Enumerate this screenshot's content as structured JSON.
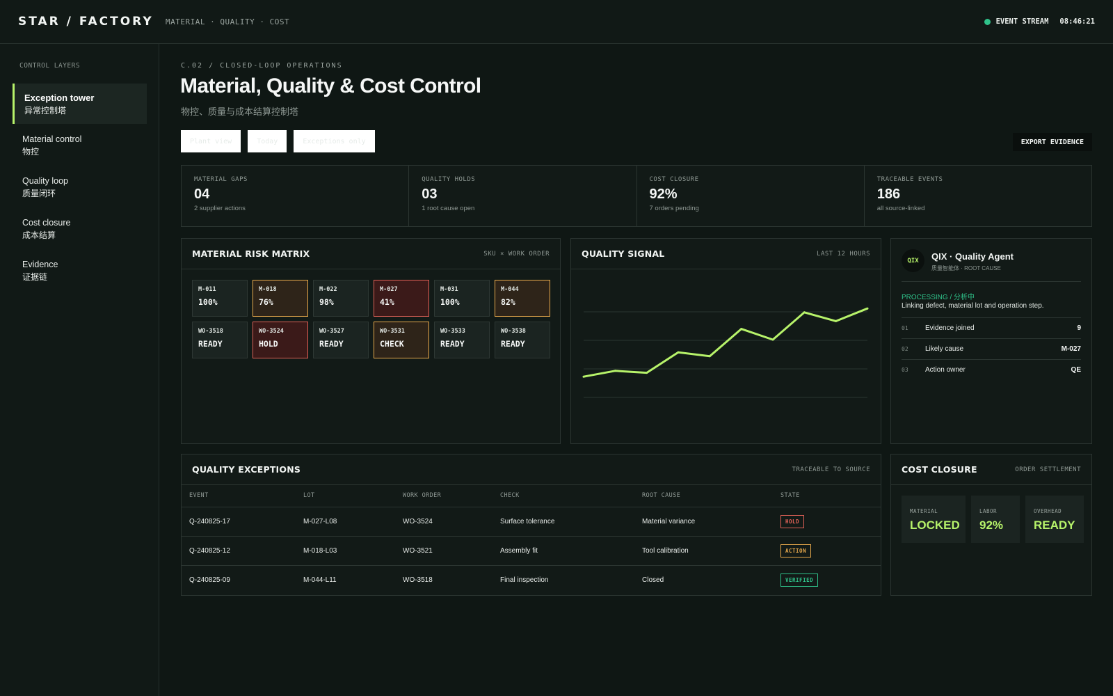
{
  "header": {
    "brand": "STAR / FACTORY",
    "nav": "MATERIAL · QUALITY · COST",
    "stream_label": "EVENT STREAM",
    "clock": "08:46:21",
    "stream_color": "#2fc28a"
  },
  "sidebar": {
    "title": "CONTROL LAYERS",
    "items": [
      {
        "en": "Exception tower",
        "zh": "异常控制塔",
        "active": true
      },
      {
        "en": "Material control",
        "zh": "物控"
      },
      {
        "en": "Quality loop",
        "zh": "质量闭环"
      },
      {
        "en": "Cost closure",
        "zh": "成本结算"
      },
      {
        "en": "Evidence",
        "zh": "证据链"
      }
    ]
  },
  "main": {
    "crumb": "C.02 / CLOSED-LOOP OPERATIONS",
    "title": "Material, Quality & Cost Control",
    "subtitle": "物控、质量与成本结算控制塔",
    "filters": [
      "Plant view",
      "Today",
      "Exceptions only"
    ],
    "export_label": "EXPORT EVIDENCE"
  },
  "kpis": [
    {
      "label": "MATERIAL GAPS",
      "value": "04",
      "sub": "2 supplier actions"
    },
    {
      "label": "QUALITY HOLDS",
      "value": "03",
      "sub": "1 root cause open"
    },
    {
      "label": "COST CLOSURE",
      "value": "92%",
      "sub": "7 orders pending"
    },
    {
      "label": "TRACEABLE EVENTS",
      "value": "186",
      "sub": "all source-linked"
    }
  ],
  "matrix": {
    "title": "MATERIAL RISK MATRIX",
    "tag": "SKU × WORK ORDER",
    "cells": [
      {
        "id": "M-011",
        "val": "100%",
        "state": "ok"
      },
      {
        "id": "M-018",
        "val": "76%",
        "state": "warn"
      },
      {
        "id": "M-022",
        "val": "98%",
        "state": "ok"
      },
      {
        "id": "M-027",
        "val": "41%",
        "state": "hold"
      },
      {
        "id": "M-031",
        "val": "100%",
        "state": "ok"
      },
      {
        "id": "M-044",
        "val": "82%",
        "state": "warn"
      },
      {
        "id": "WO-3518",
        "val": "READY",
        "state": "ok"
      },
      {
        "id": "WO-3524",
        "val": "HOLD",
        "state": "hold"
      },
      {
        "id": "WO-3527",
        "val": "READY",
        "state": "ok"
      },
      {
        "id": "WO-3531",
        "val": "CHECK",
        "state": "warn"
      },
      {
        "id": "WO-3533",
        "val": "READY",
        "state": "ok"
      },
      {
        "id": "WO-3538",
        "val": "READY",
        "state": "ok"
      }
    ]
  },
  "signal": {
    "title": "QUALITY SIGNAL",
    "tag": "LAST 12 HOURS",
    "line_color": "#b7f36a"
  },
  "chart_data": {
    "type": "line",
    "title": "QUALITY SIGNAL",
    "xlabel": "",
    "ylabel": "",
    "grid": true,
    "ylim": [
      0,
      100
    ],
    "x": [
      1,
      2,
      3,
      4,
      5,
      6,
      7,
      8,
      9,
      10
    ],
    "series": [
      {
        "values": [
          22,
          28,
          26,
          47,
          43,
          71,
          60,
          88,
          79,
          92
        ]
      }
    ]
  },
  "agent": {
    "avatar": "QIX",
    "name": "QIX · Quality Agent",
    "sub": "质量智能体 · ROOT CAUSE",
    "status": "PROCESSING / 分析中",
    "desc": "Linking defect, material lot and operation step.",
    "rows": [
      {
        "num": "01",
        "label": "Evidence joined",
        "value": "9"
      },
      {
        "num": "02",
        "label": "Likely cause",
        "value": "M-027"
      },
      {
        "num": "03",
        "label": "Action owner",
        "value": "QE"
      }
    ]
  },
  "exceptions": {
    "title": "QUALITY EXCEPTIONS",
    "tag": "TRACEABLE TO SOURCE",
    "columns": [
      "EVENT",
      "LOT",
      "WORK ORDER",
      "CHECK",
      "ROOT CAUSE",
      "STATE"
    ],
    "rows": [
      {
        "event": "Q-240825-17",
        "lot": "M-027-L08",
        "wo": "WO-3524",
        "check": "Surface tolerance",
        "cause": "Material variance",
        "state": "HOLD",
        "kind": "hold"
      },
      {
        "event": "Q-240825-12",
        "lot": "M-018-L03",
        "wo": "WO-3521",
        "check": "Assembly fit",
        "cause": "Tool calibration",
        "state": "ACTION",
        "kind": "action"
      },
      {
        "event": "Q-240825-09",
        "lot": "M-044-L11",
        "wo": "WO-3518",
        "check": "Final inspection",
        "cause": "Closed",
        "state": "VERIFIED",
        "kind": "verified"
      }
    ]
  },
  "cost": {
    "title": "COST CLOSURE",
    "tag": "ORDER SETTLEMENT",
    "cards": [
      {
        "label": "MATERIAL",
        "value": "LOCKED"
      },
      {
        "label": "LABOR",
        "value": "92%"
      },
      {
        "label": "OVERHEAD",
        "value": "READY"
      }
    ]
  }
}
